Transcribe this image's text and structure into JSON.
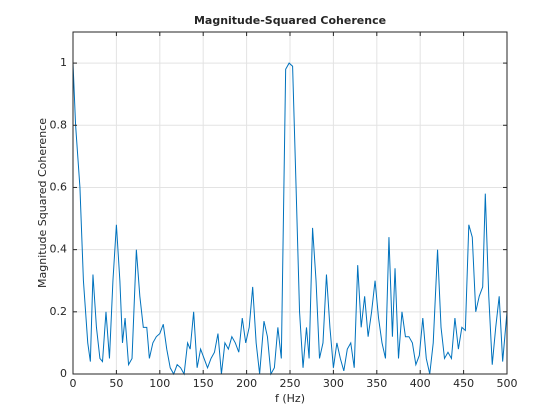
{
  "chart_data": {
    "type": "line",
    "title": "Magnitude-Squared Coherence",
    "xlabel": "f (Hz)",
    "ylabel": "Magnitude Squared Coherence",
    "x": [
      0,
      3,
      8,
      12,
      17,
      20,
      23,
      27,
      31,
      34,
      38,
      42,
      46,
      50,
      54,
      57,
      60,
      64,
      68,
      73,
      77,
      81,
      85,
      88,
      92,
      96,
      100,
      104,
      108,
      112,
      116,
      120,
      124,
      128,
      132,
      135,
      139,
      143,
      147,
      151,
      155,
      159,
      163,
      167,
      171,
      175,
      179,
      183,
      187,
      191,
      195,
      199,
      203,
      207,
      211,
      215,
      220,
      224,
      228,
      232,
      236,
      240,
      245,
      249,
      253,
      257,
      261,
      265,
      269,
      272,
      276,
      280,
      284,
      288,
      292,
      296,
      300,
      304,
      308,
      312,
      316,
      320,
      324,
      328,
      332,
      336,
      340,
      344,
      348,
      352,
      356,
      360,
      364,
      368,
      371,
      375,
      379,
      383,
      387,
      391,
      395,
      399,
      403,
      407,
      411,
      415,
      420,
      424,
      428,
      432,
      436,
      440,
      444,
      448,
      452,
      456,
      460,
      464,
      468,
      472,
      475,
      479,
      483,
      487,
      491,
      495,
      500
    ],
    "values": [
      1.0,
      0.8,
      0.6,
      0.3,
      0.1,
      0.04,
      0.32,
      0.15,
      0.05,
      0.04,
      0.2,
      0.05,
      0.3,
      0.48,
      0.3,
      0.1,
      0.18,
      0.03,
      0.05,
      0.4,
      0.25,
      0.15,
      0.15,
      0.05,
      0.1,
      0.12,
      0.13,
      0.16,
      0.08,
      0.02,
      0.0,
      0.03,
      0.02,
      0.0,
      0.1,
      0.08,
      0.2,
      0.02,
      0.08,
      0.05,
      0.02,
      0.05,
      0.07,
      0.13,
      0.0,
      0.1,
      0.08,
      0.12,
      0.1,
      0.07,
      0.18,
      0.1,
      0.15,
      0.28,
      0.1,
      0.0,
      0.17,
      0.12,
      0.0,
      0.02,
      0.15,
      0.05,
      0.98,
      1.0,
      0.99,
      0.6,
      0.2,
      0.02,
      0.15,
      0.05,
      0.47,
      0.3,
      0.05,
      0.1,
      0.32,
      0.15,
      0.02,
      0.1,
      0.05,
      0.01,
      0.08,
      0.1,
      0.02,
      0.35,
      0.15,
      0.25,
      0.12,
      0.2,
      0.3,
      0.18,
      0.1,
      0.05,
      0.44,
      0.12,
      0.34,
      0.05,
      0.2,
      0.12,
      0.12,
      0.1,
      0.03,
      0.06,
      0.18,
      0.05,
      0.0,
      0.1,
      0.4,
      0.15,
      0.05,
      0.07,
      0.05,
      0.18,
      0.08,
      0.15,
      0.14,
      0.48,
      0.44,
      0.2,
      0.25,
      0.28,
      0.58,
      0.25,
      0.03,
      0.15,
      0.25,
      0.04,
      0.2
    ],
    "color": "#0072bd",
    "xlim": [
      0,
      500
    ],
    "xticks": [
      0,
      50,
      100,
      150,
      200,
      250,
      300,
      350,
      400,
      450,
      500
    ],
    "ylim": [
      0,
      1.1
    ],
    "yticks": [
      0,
      0.2,
      0.4,
      0.6,
      0.8,
      1
    ],
    "grid": true
  }
}
